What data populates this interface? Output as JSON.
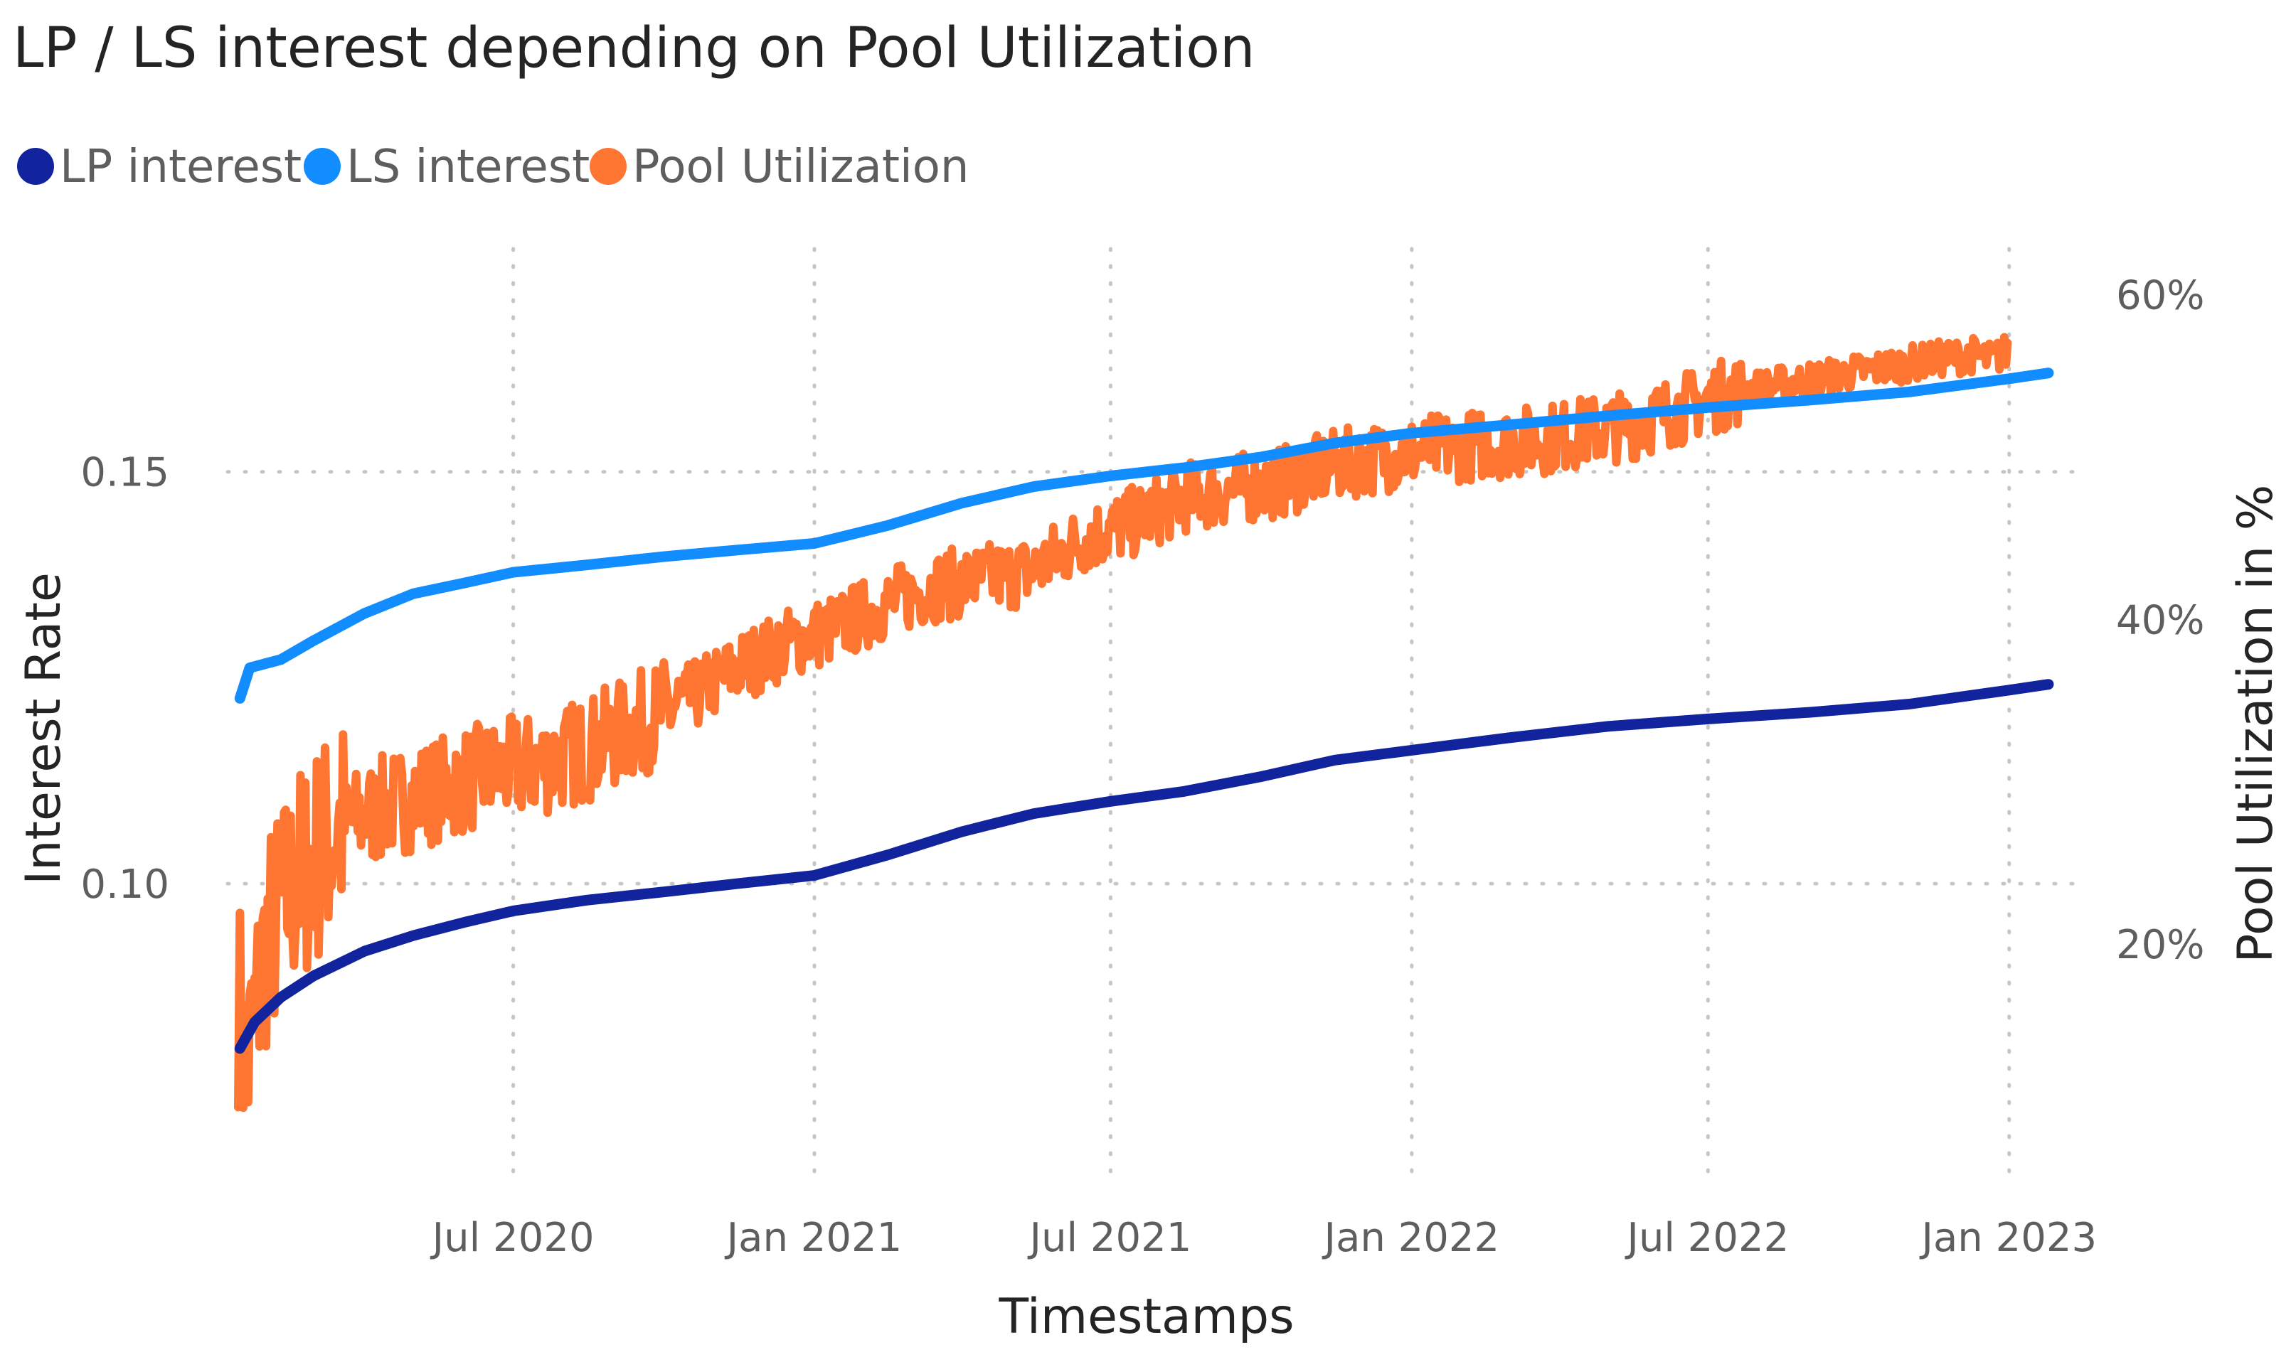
{
  "chart_data": {
    "type": "line",
    "title": "LP / LS interest depending on Pool Utilization",
    "xlabel": "Timestamps",
    "ylabel": "Interest Rate",
    "y2label": "Pool Utilization in %",
    "x_start": "2020-01-15",
    "x_end": "2023-01-25",
    "x_ticks": [
      {
        "date": "2020-07-01",
        "label": "Jul 2020"
      },
      {
        "date": "2021-01-01",
        "label": "Jan 2021"
      },
      {
        "date": "2021-07-01",
        "label": "Jul 2021"
      },
      {
        "date": "2022-01-01",
        "label": "Jan 2022"
      },
      {
        "date": "2022-07-01",
        "label": "Jul 2022"
      },
      {
        "date": "2023-01-01",
        "label": "Jan 2023"
      }
    ],
    "y_left_ticks": [
      {
        "value": 0.1,
        "label": "0.10"
      },
      {
        "value": 0.15,
        "label": "0.15"
      }
    ],
    "y_right_ticks": [
      {
        "value": 20,
        "label": "20%"
      },
      {
        "value": 40,
        "label": "40%"
      },
      {
        "value": 60,
        "label": "60%"
      }
    ],
    "ylim_left": [
      0.0623,
      0.1788
    ],
    "ylim_right": [
      4.6,
      63.7
    ],
    "legend_position": "top-left",
    "series": [
      {
        "name": "LP interest",
        "legend_label": "LP interest",
        "axis": "left",
        "color": "#12239e",
        "noise": 0,
        "points": [
          [
            "2020-01-16",
            0.08
          ],
          [
            "2020-01-25",
            0.0832
          ],
          [
            "2020-02-10",
            0.0862
          ],
          [
            "2020-03-01",
            0.0888
          ],
          [
            "2020-04-01",
            0.0918
          ],
          [
            "2020-05-01",
            0.0937
          ],
          [
            "2020-06-01",
            0.0953
          ],
          [
            "2020-07-01",
            0.0967
          ],
          [
            "2020-08-15",
            0.098
          ],
          [
            "2020-10-01",
            0.099
          ],
          [
            "2020-11-15",
            0.1
          ],
          [
            "2021-01-01",
            0.101
          ],
          [
            "2021-02-15",
            0.1035
          ],
          [
            "2021-04-01",
            0.1063
          ],
          [
            "2021-05-15",
            0.1085
          ],
          [
            "2021-07-01",
            0.11
          ],
          [
            "2021-08-15",
            0.1112
          ],
          [
            "2021-10-01",
            0.113
          ],
          [
            "2021-11-15",
            0.115
          ],
          [
            "2022-01-01",
            0.1162
          ],
          [
            "2022-03-01",
            0.1177
          ],
          [
            "2022-05-01",
            0.1191
          ],
          [
            "2022-07-01",
            0.12
          ],
          [
            "2022-09-01",
            0.1208
          ],
          [
            "2022-11-01",
            0.1218
          ],
          [
            "2023-01-01",
            0.1235
          ],
          [
            "2023-01-25",
            0.1242
          ]
        ]
      },
      {
        "name": "LS interest",
        "legend_label": "LS interest",
        "axis": "left",
        "color": "#118dff",
        "noise": 0,
        "points": [
          [
            "2020-01-16",
            0.1225
          ],
          [
            "2020-01-22",
            0.1262
          ],
          [
            "2020-02-10",
            0.1272
          ],
          [
            "2020-03-01",
            0.1295
          ],
          [
            "2020-04-01",
            0.1328
          ],
          [
            "2020-05-01",
            0.1352
          ],
          [
            "2020-06-01",
            0.1365
          ],
          [
            "2020-07-01",
            0.1378
          ],
          [
            "2020-08-15",
            0.1387
          ],
          [
            "2020-10-01",
            0.1397
          ],
          [
            "2020-11-15",
            0.1405
          ],
          [
            "2021-01-01",
            0.1413
          ],
          [
            "2021-02-15",
            0.1435
          ],
          [
            "2021-04-01",
            0.1462
          ],
          [
            "2021-05-15",
            0.1482
          ],
          [
            "2021-07-01",
            0.1495
          ],
          [
            "2021-08-15",
            0.1505
          ],
          [
            "2021-10-01",
            0.1518
          ],
          [
            "2021-11-15",
            0.1535
          ],
          [
            "2022-01-01",
            0.1547
          ],
          [
            "2022-03-01",
            0.1557
          ],
          [
            "2022-05-01",
            0.1568
          ],
          [
            "2022-07-01",
            0.1578
          ],
          [
            "2022-09-01",
            0.1587
          ],
          [
            "2022-11-01",
            0.1597
          ],
          [
            "2023-01-01",
            0.1613
          ],
          [
            "2023-01-25",
            0.162
          ]
        ]
      },
      {
        "name": "Pool Utilization",
        "legend_label": "Pool Utilization",
        "axis": "right",
        "color": "#ff7633",
        "noise": 2.2,
        "points": [
          [
            "2020-01-15",
            17.0
          ],
          [
            "2020-01-20",
            12.0
          ],
          [
            "2020-02-01",
            20.0
          ],
          [
            "2020-02-20",
            24.0
          ],
          [
            "2020-03-15",
            27.0
          ],
          [
            "2020-04-15",
            28.5
          ],
          [
            "2020-05-15",
            29.5
          ],
          [
            "2020-06-15",
            30.5
          ],
          [
            "2020-07-15",
            31.0
          ],
          [
            "2020-08-15",
            32.0
          ],
          [
            "2020-09-15",
            33.5
          ],
          [
            "2020-10-15",
            35.0
          ],
          [
            "2020-11-15",
            37.0
          ],
          [
            "2020-12-15",
            38.5
          ],
          [
            "2021-01-15",
            39.5
          ],
          [
            "2021-02-15",
            41.0
          ],
          [
            "2021-03-15",
            42.0
          ],
          [
            "2021-04-15",
            42.5
          ],
          [
            "2021-05-15",
            43.0
          ],
          [
            "2021-06-15",
            45.0
          ],
          [
            "2021-07-15",
            46.0
          ],
          [
            "2021-08-15",
            47.5
          ],
          [
            "2021-09-15",
            48.0
          ],
          [
            "2021-10-15",
            48.5
          ],
          [
            "2021-11-15",
            49.5
          ],
          [
            "2021-12-15",
            50.0
          ],
          [
            "2022-01-15",
            50.5
          ],
          [
            "2022-02-15",
            50.8
          ],
          [
            "2022-03-15",
            51.0
          ],
          [
            "2022-04-15",
            51.5
          ],
          [
            "2022-05-15",
            52.0
          ],
          [
            "2022-06-15",
            53.0
          ],
          [
            "2022-07-15",
            54.0
          ],
          [
            "2022-08-15",
            54.5
          ],
          [
            "2022-09-15",
            55.0
          ],
          [
            "2022-10-15",
            55.5
          ],
          [
            "2022-11-15",
            56.0
          ],
          [
            "2022-12-10",
            56.3
          ],
          [
            "2022-12-20",
            56.0
          ],
          [
            "2022-12-31",
            56.5
          ]
        ]
      }
    ]
  }
}
